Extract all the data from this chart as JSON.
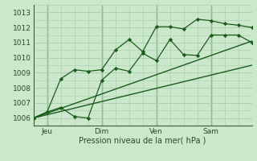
{
  "bg_color": "#cce8cc",
  "plot_bg_color": "#cce8cc",
  "grid_color": "#aaccaa",
  "line_color": "#1a5c1a",
  "vline_color": "#336633",
  "xlabel": "Pression niveau de la mer( hPa )",
  "ylim": [
    1005.5,
    1013.5
  ],
  "xlim": [
    0,
    96
  ],
  "yticks": [
    1006,
    1007,
    1008,
    1009,
    1010,
    1011,
    1012,
    1013
  ],
  "xtick_positions": [
    6,
    30,
    54,
    78
  ],
  "xtick_labels": [
    "Jeu",
    "Dim",
    "Ven",
    "Sam"
  ],
  "vlines": [
    6,
    30,
    54,
    78
  ],
  "series1_x": [
    0,
    6,
    12,
    18,
    24,
    30,
    36,
    42,
    48,
    54,
    60,
    66,
    72,
    78,
    84,
    90,
    96
  ],
  "series1_y": [
    1006.0,
    1006.4,
    1006.7,
    1006.1,
    1006.0,
    1008.5,
    1009.3,
    1009.1,
    1010.3,
    1009.8,
    1011.2,
    1010.2,
    1010.15,
    1011.5,
    1011.5,
    1011.5,
    1011.0
  ],
  "series2_x": [
    0,
    6,
    12,
    18,
    24,
    30,
    36,
    42,
    48,
    54,
    60,
    66,
    72,
    78,
    84,
    90,
    96
  ],
  "series2_y": [
    1006.0,
    1006.4,
    1008.6,
    1009.2,
    1009.1,
    1009.2,
    1010.5,
    1011.2,
    1010.4,
    1012.05,
    1012.05,
    1011.9,
    1012.55,
    1012.45,
    1012.25,
    1012.15,
    1012.0
  ],
  "series3_x": [
    0,
    96
  ],
  "series3_y": [
    1006.0,
    1009.5
  ],
  "series4_x": [
    0,
    96
  ],
  "series4_y": [
    1006.0,
    1011.1
  ]
}
